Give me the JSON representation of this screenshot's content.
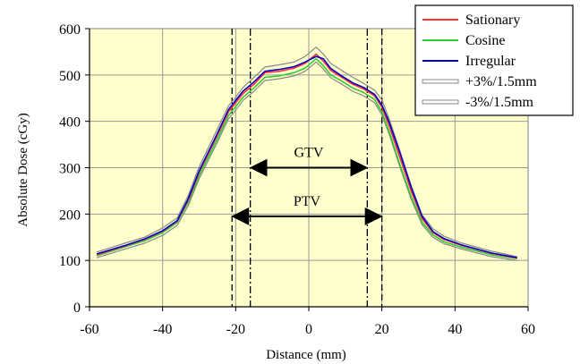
{
  "chart_data": {
    "type": "line",
    "title": "",
    "xlabel": "Distance (mm)",
    "ylabel": "Absolute Dose (cGy)",
    "xlim": [
      -60,
      60
    ],
    "ylim": [
      0,
      600
    ],
    "x_ticks": [
      -60,
      -40,
      -20,
      0,
      20,
      40,
      60
    ],
    "y_ticks": [
      0,
      100,
      200,
      300,
      400,
      500,
      600
    ],
    "grid": true,
    "plot_background": "#ffffcc",
    "legend_position": "top-right",
    "x": [
      -58,
      -50,
      -45,
      -40,
      -36,
      -33,
      -30,
      -25,
      -22,
      -20,
      -18,
      -15,
      -12,
      -8,
      -4,
      -1,
      2,
      4,
      6,
      9,
      12,
      15,
      18,
      20,
      22,
      25,
      28,
      31,
      34,
      37,
      42,
      50,
      57
    ],
    "series": [
      {
        "name": "Sationary",
        "color": "#ff3333",
        "values": [
          112,
          132,
          145,
          163,
          185,
          230,
          290,
          370,
          420,
          440,
          460,
          480,
          505,
          508,
          515,
          525,
          545,
          530,
          510,
          495,
          480,
          470,
          455,
          430,
          390,
          320,
          250,
          190,
          160,
          145,
          132,
          115,
          105
        ]
      },
      {
        "name": "Cosine",
        "color": "#33cc33",
        "values": [
          110,
          130,
          142,
          160,
          182,
          225,
          283,
          362,
          412,
          432,
          452,
          472,
          495,
          498,
          505,
          515,
          535,
          520,
          500,
          487,
          472,
          462,
          447,
          420,
          378,
          305,
          238,
          182,
          155,
          140,
          128,
          112,
          104
        ]
      },
      {
        "name": "Irregular",
        "color": "#0000cc",
        "values": [
          114,
          133,
          146,
          164,
          186,
          233,
          293,
          374,
          425,
          445,
          465,
          485,
          508,
          512,
          518,
          528,
          540,
          535,
          514,
          498,
          483,
          473,
          458,
          435,
          398,
          330,
          258,
          195,
          162,
          147,
          133,
          116,
          106
        ]
      },
      {
        "name": "+3%/1.5mm",
        "color": "#888888",
        "values": [
          118,
          138,
          150,
          170,
          192,
          240,
          302,
          384,
          433,
          452,
          473,
          495,
          517,
          522,
          528,
          540,
          560,
          545,
          525,
          510,
          495,
          482,
          467,
          446,
          405,
          335,
          262,
          198,
          168,
          152,
          137,
          120,
          108
        ]
      },
      {
        "name": "-3%/1.5mm",
        "color": "#888888",
        "values": [
          106,
          125,
          137,
          154,
          176,
          218,
          276,
          355,
          405,
          424,
          445,
          465,
          488,
          492,
          498,
          508,
          528,
          513,
          494,
          480,
          465,
          455,
          440,
          414,
          372,
          300,
          232,
          177,
          150,
          136,
          124,
          108,
          100
        ]
      }
    ],
    "annotations": [
      {
        "label": "GTV",
        "x_from": -16,
        "x_to": 16,
        "y": 300,
        "line_style": "dash-dot"
      },
      {
        "label": "PTV",
        "x_from": -21,
        "x_to": 20,
        "y": 195,
        "line_style": "dashed"
      }
    ]
  }
}
